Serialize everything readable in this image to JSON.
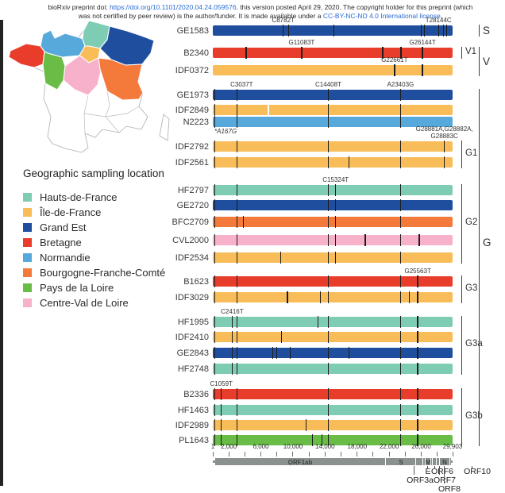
{
  "banner": {
    "line1_prefix": "bioRxiv preprint doi: ",
    "line1_link": "https://doi.org/10.1101/2020.04.24.059576",
    "line1_suffix": ". this version posted April 29, 2020. The copyright holder for this preprint (which",
    "line2_prefix": "was not certified by peer review) is the author/funder. It is made available under a ",
    "line2_link": "CC-BY-NC-ND 4.0 International license",
    "line2_suffix": "."
  },
  "legend": {
    "title": "Geographic sampling location",
    "items": [
      {
        "key": "hdf",
        "label": "Hauts-de-France",
        "color": "#7fccb5"
      },
      {
        "key": "idf",
        "label": "Île-de-France",
        "color": "#f8bd59"
      },
      {
        "key": "ge",
        "label": "Grand Est",
        "color": "#1f4e9f"
      },
      {
        "key": "bre",
        "label": "Bretagne",
        "color": "#e93d2c"
      },
      {
        "key": "nor",
        "label": "Normandie",
        "color": "#57a8db"
      },
      {
        "key": "bfc",
        "label": "Bourgogne-Franche-Comté",
        "color": "#f47a3c"
      },
      {
        "key": "pdl",
        "label": "Pays de la Loire",
        "color": "#69bd46"
      },
      {
        "key": "cvl",
        "label": "Centre-Val de Loire",
        "color": "#f8b1cb"
      }
    ]
  },
  "chart_data": {
    "type": "genome-mutation-map",
    "title": "",
    "x_axis": {
      "min": 1,
      "max": 29903,
      "major_ticks": [
        {
          "pos": 1,
          "label": "1"
        },
        {
          "pos": 2000,
          "label": "2,000"
        },
        {
          "pos": 6000,
          "label": "6,000"
        },
        {
          "pos": 10000,
          "label": "10,000"
        },
        {
          "pos": 14000,
          "label": "14,000"
        },
        {
          "pos": 18000,
          "label": "18,000"
        },
        {
          "pos": 22000,
          "label": "22,000"
        },
        {
          "pos": 26000,
          "label": "26,000"
        },
        {
          "pos": 29903,
          "label": "29,903"
        }
      ],
      "minor_ticks": [
        4000,
        8000,
        12000,
        16000,
        20000,
        24000,
        28000
      ]
    },
    "samples": [
      {
        "name": "GE1583",
        "region": "ge",
        "mutations": [
          8782,
          9477,
          15100,
          26000,
          26400,
          28144,
          28750,
          29150
        ],
        "annotations": [
          {
            "text": "C8782T",
            "pos": 8782
          },
          {
            "text": "T28144C",
            "pos": 28144
          }
        ]
      },
      {
        "name": "B2340",
        "region": "bre",
        "mutations": [
          4150,
          11083,
          21200,
          23450,
          26144
        ],
        "annotations": [
          {
            "text": "G11083T",
            "pos": 11083
          },
          {
            "text": "G26144T",
            "pos": 26144
          }
        ]
      },
      {
        "name": "IDF0372",
        "region": "idf",
        "mutations": [
          22661,
          26144
        ],
        "annotations": [
          {
            "text": "G22661T",
            "pos": 22661
          }
        ]
      },
      {
        "name": "GE1973",
        "region": "ge",
        "mutations": [
          241,
          3037,
          14408,
          23403
        ],
        "annotations": [
          {
            "text": "C3037T",
            "pos": 3600
          },
          {
            "text": "C14408T",
            "pos": 14408
          },
          {
            "text": "A23403G",
            "pos": 23403
          }
        ]
      },
      {
        "name": "IDF2849",
        "region": "idf",
        "mutations": [
          241,
          3037,
          14408,
          23403
        ],
        "gaps": [
          6930
        ]
      },
      {
        "name": "N2223",
        "region": "nor",
        "mutations": [
          241,
          3037,
          14408,
          23403
        ],
        "annotations": [
          {
            "text": "*A167G",
            "pos": 400,
            "placement": "below"
          }
        ]
      },
      {
        "name": "IDF2792",
        "region": "idf",
        "mutations": [
          241,
          3037,
          14408,
          23403,
          28881
        ],
        "annotations": [
          {
            "text": "G28881A,G28882A,\nG28883C",
            "pos": 28881,
            "two_line": true
          }
        ]
      },
      {
        "name": "IDF2561",
        "region": "idf",
        "mutations": [
          241,
          3037,
          14408,
          17000,
          23403,
          28881
        ]
      },
      {
        "name": "HF2797",
        "region": "hdf",
        "mutations": [
          241,
          3037,
          14408,
          15324,
          23403
        ],
        "annotations": [
          {
            "text": "C15324T",
            "pos": 15324
          }
        ]
      },
      {
        "name": "GE2720",
        "region": "ge",
        "mutations": [
          241,
          3037,
          14408,
          15324,
          23403
        ]
      },
      {
        "name": "BFC2709",
        "region": "bfc",
        "mutations": [
          241,
          3037,
          3800,
          14408,
          15324,
          23403
        ]
      },
      {
        "name": "CVL2000",
        "region": "cvl",
        "mutations": [
          241,
          3037,
          14408,
          15324,
          19000,
          23403,
          25750
        ]
      },
      {
        "name": "IDF2534",
        "region": "idf",
        "mutations": [
          241,
          3037,
          8450,
          14408,
          15324,
          23403
        ]
      },
      {
        "name": "B1623",
        "region": "bre",
        "mutations": [
          241,
          3037,
          14408,
          23403,
          25563
        ],
        "annotations": [
          {
            "text": "G25563T",
            "pos": 25563
          }
        ]
      },
      {
        "name": "IDF3029",
        "region": "idf",
        "mutations": [
          241,
          3037,
          9300,
          13400,
          14408,
          23403,
          24500,
          25563
        ]
      },
      {
        "name": "HF1995",
        "region": "hdf",
        "mutations": [
          241,
          2416,
          3037,
          13100,
          14408,
          23403,
          25563
        ],
        "annotations": [
          {
            "text": "C2416T",
            "pos": 2416
          }
        ]
      },
      {
        "name": "IDF2410",
        "region": "idf",
        "mutations": [
          241,
          2416,
          3037,
          8550,
          14408,
          23403,
          25563
        ]
      },
      {
        "name": "GE2843",
        "region": "ge",
        "mutations": [
          241,
          2416,
          3037,
          7450,
          8000,
          9650,
          14408,
          17000,
          23403,
          25563
        ]
      },
      {
        "name": "HF2748",
        "region": "hdf",
        "mutations": [
          241,
          2416,
          3037,
          14408,
          23403,
          25563
        ]
      },
      {
        "name": "B2336",
        "region": "bre",
        "mutations": [
          241,
          1059,
          3037,
          14408,
          23403,
          25563
        ],
        "annotations": [
          {
            "text": "C1059T",
            "pos": 1059
          }
        ]
      },
      {
        "name": "HF1463",
        "region": "hdf",
        "mutations": [
          241,
          1059,
          3037,
          14408,
          23403,
          25563
        ]
      },
      {
        "name": "IDF2989",
        "region": "idf",
        "mutations": [
          241,
          1059,
          3037,
          11650,
          14408,
          23403,
          25563
        ]
      },
      {
        "name": "PL1643",
        "region": "pdl",
        "mutations": [
          241,
          1059,
          3037,
          12400,
          13600,
          14408,
          23403,
          25563
        ]
      }
    ],
    "clades": [
      {
        "label": "S",
        "first": 0,
        "last": 0,
        "level": 2
      },
      {
        "label": "V1",
        "first": 1,
        "last": 1,
        "level": 1
      },
      {
        "label": "V",
        "first": 1,
        "last": 2,
        "level": 2
      },
      {
        "label": "G1",
        "first": 6,
        "last": 7,
        "level": 1
      },
      {
        "label": "G2",
        "first": 8,
        "last": 12,
        "level": 1
      },
      {
        "label": "G3",
        "first": 13,
        "last": 14,
        "level": 1
      },
      {
        "label": "G3a",
        "first": 15,
        "last": 18,
        "level": 1
      },
      {
        "label": "G3b",
        "first": 19,
        "last": 22,
        "level": 1
      },
      {
        "label": "G",
        "first": 3,
        "last": 22,
        "level": 2
      }
    ],
    "genome_track": {
      "genes": [
        {
          "name": "ORF1ab",
          "start": 266,
          "end": 21555
        },
        {
          "name": "S",
          "start": 21563,
          "end": 25384
        },
        {
          "name": "ORF3a",
          "start": 25393,
          "end": 26220
        },
        {
          "name": "E",
          "start": 26245,
          "end": 26472
        },
        {
          "name": "M",
          "start": 26523,
          "end": 27191
        },
        {
          "name": "ORF6",
          "start": 27202,
          "end": 27387
        },
        {
          "name": "ORF7",
          "start": 27394,
          "end": 27887
        },
        {
          "name": "ORF8",
          "start": 27894,
          "end": 28259
        },
        {
          "name": "N",
          "start": 28274,
          "end": 29533
        },
        {
          "name": "ORF10",
          "start": 29558,
          "end": 29674
        }
      ],
      "inside_labels": [
        {
          "label": "ORF1ab",
          "pos": 10900
        },
        {
          "label": "S",
          "pos": 23470
        },
        {
          "label": "M",
          "pos": 26850
        },
        {
          "label": "N",
          "pos": 28900
        }
      ],
      "callouts": [
        {
          "label": "E"
        },
        {
          "label": "ORF6"
        },
        {
          "label": "ORF10"
        },
        {
          "label": "ORF3a"
        },
        {
          "label": "ORF7"
        },
        {
          "label": "ORF8"
        }
      ]
    }
  }
}
